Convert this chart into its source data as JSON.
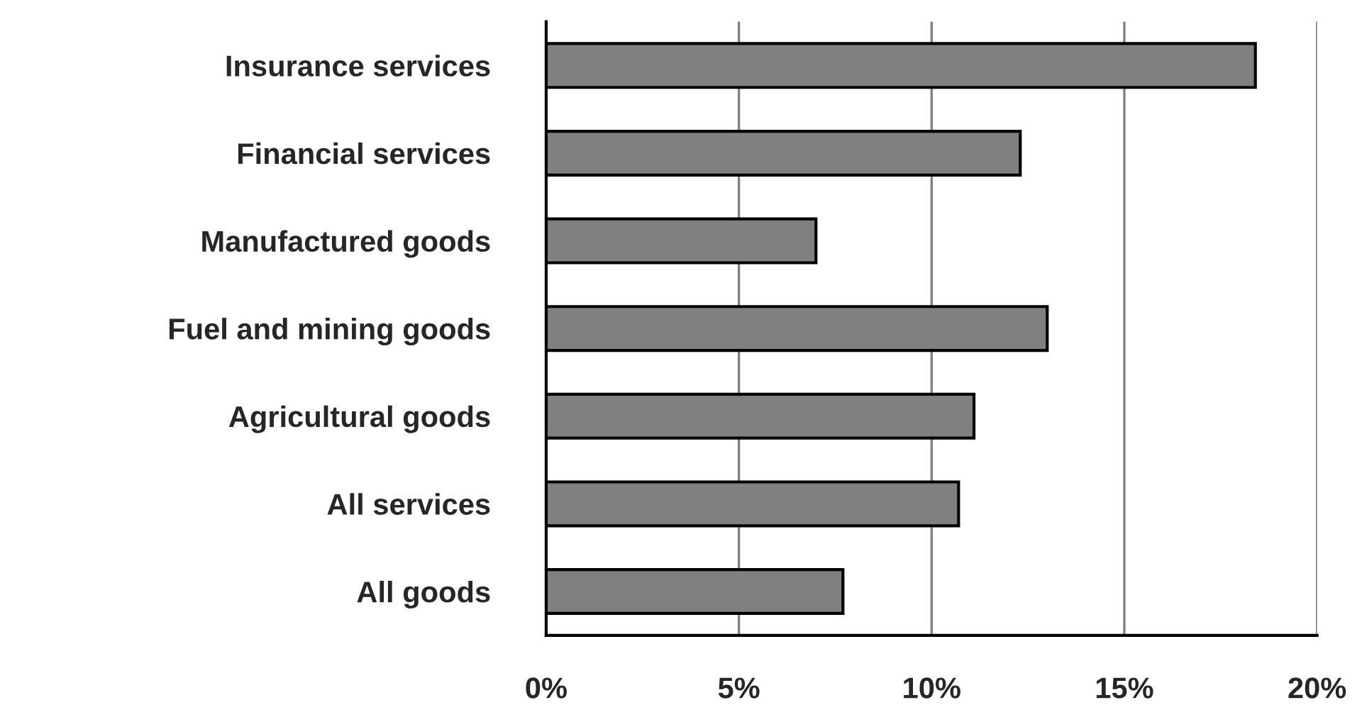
{
  "chart_data": {
    "type": "bar",
    "orientation": "horizontal",
    "categories": [
      "Insurance services",
      "Financial services",
      "Manufactured goods",
      "Fuel and mining goods",
      "Agricultural goods",
      "All services",
      "All goods"
    ],
    "values": [
      18.4,
      12.3,
      7.0,
      13.0,
      11.1,
      10.7,
      7.7
    ],
    "color": "#808080",
    "xlim": [
      0,
      20
    ],
    "xticks": [
      {
        "value": 0,
        "label": "0%"
      },
      {
        "value": 5,
        "label": "5%"
      },
      {
        "value": 10,
        "label": "10%"
      },
      {
        "value": 15,
        "label": "15%"
      },
      {
        "value": 20,
        "label": "20%"
      }
    ],
    "grid": "x",
    "legend": false
  }
}
